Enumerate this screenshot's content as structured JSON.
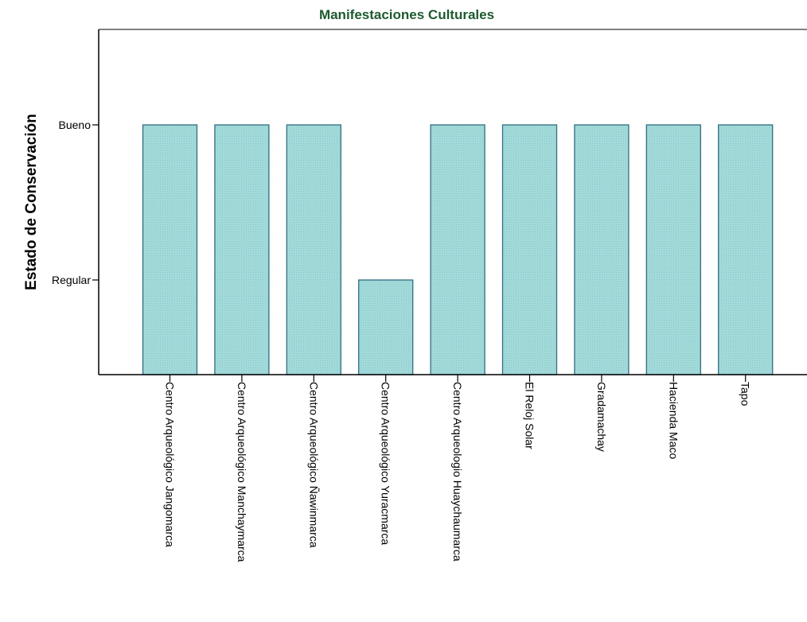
{
  "chart_data": {
    "type": "bar",
    "title": "Manifestaciones Culturales",
    "xlabel": "",
    "ylabel": "Estado de Conservación",
    "y_categories": [
      "Regular",
      "Bueno"
    ],
    "categories": [
      "Centro Arqueológico Jangomarca",
      "Centro Arqueológico Manchaymarca",
      "Centro Arqueológico Ñawinmarca",
      "Centro Arqueológico Yuracmarca",
      "Centro Arqueologio Huaychaumarca",
      "El Reloj Solar",
      "Gradamachay",
      "Hacienda Maco",
      "Tapo"
    ],
    "values": [
      "Bueno",
      "Bueno",
      "Bueno",
      "Regular",
      "Bueno",
      "Bueno",
      "Bueno",
      "Bueno",
      "Bueno"
    ],
    "grid": false,
    "legend": "none",
    "colors": {
      "title": "#1e5a2e",
      "bar_fill": "#a7dcdc",
      "bar_stroke": "#2f6f7f",
      "axis": "#000000"
    }
  }
}
